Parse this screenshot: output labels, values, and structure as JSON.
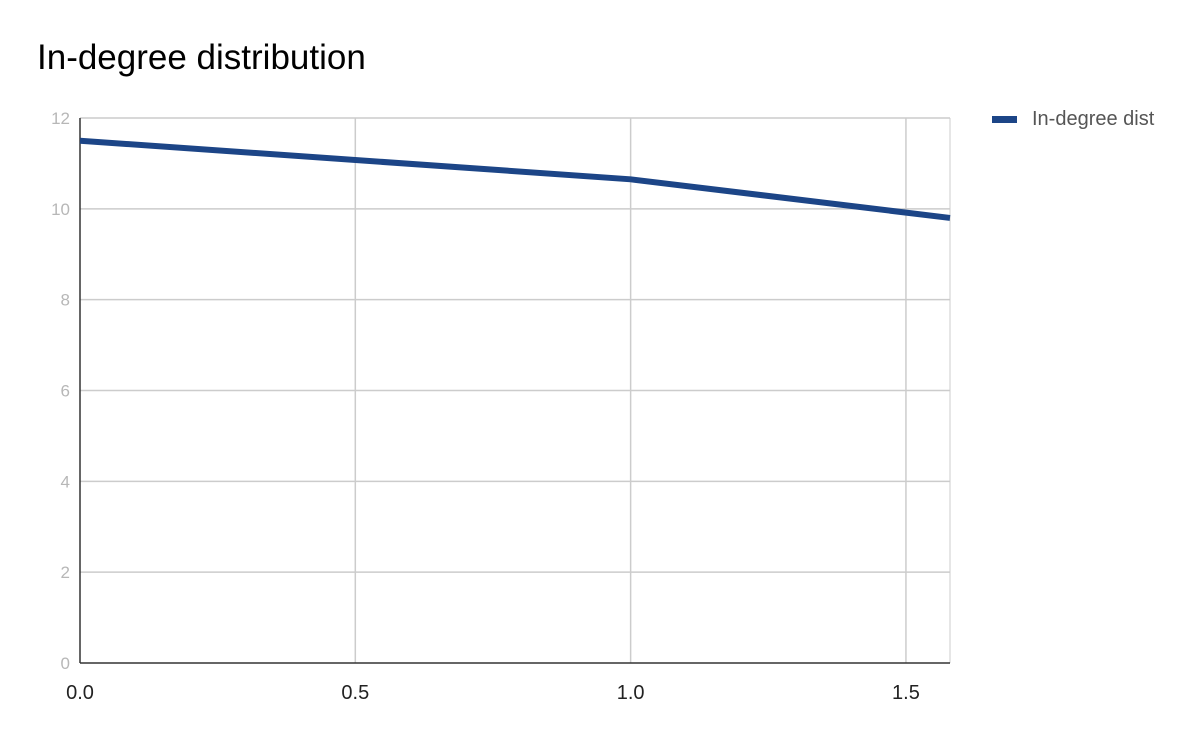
{
  "chart_data": {
    "type": "line",
    "title": "In-degree distribution",
    "xlabel": "",
    "ylabel": "",
    "x": [
      0.0,
      1.0,
      1.58
    ],
    "series": [
      {
        "name": "In-degree dist",
        "y": [
          11.5,
          10.65,
          9.8
        ]
      }
    ],
    "xlim": [
      0.0,
      1.58
    ],
    "ylim": [
      0,
      12
    ],
    "x_ticks": [
      0.0,
      0.5,
      1.0,
      1.5
    ],
    "x_tick_labels": [
      "0.0",
      "0.5",
      "1.0",
      "1.5"
    ],
    "y_ticks": [
      0,
      2,
      4,
      6,
      8,
      10,
      12
    ],
    "y_tick_labels": [
      "0",
      "2",
      "4",
      "6",
      "8",
      "10",
      "12"
    ],
    "grid": true,
    "legend": "right",
    "colors": {
      "series": "#1c4587",
      "grid": "#cccccc",
      "axis": "#333333",
      "y_tick_text": "#b7b7b7",
      "x_tick_text": "#222222"
    }
  }
}
